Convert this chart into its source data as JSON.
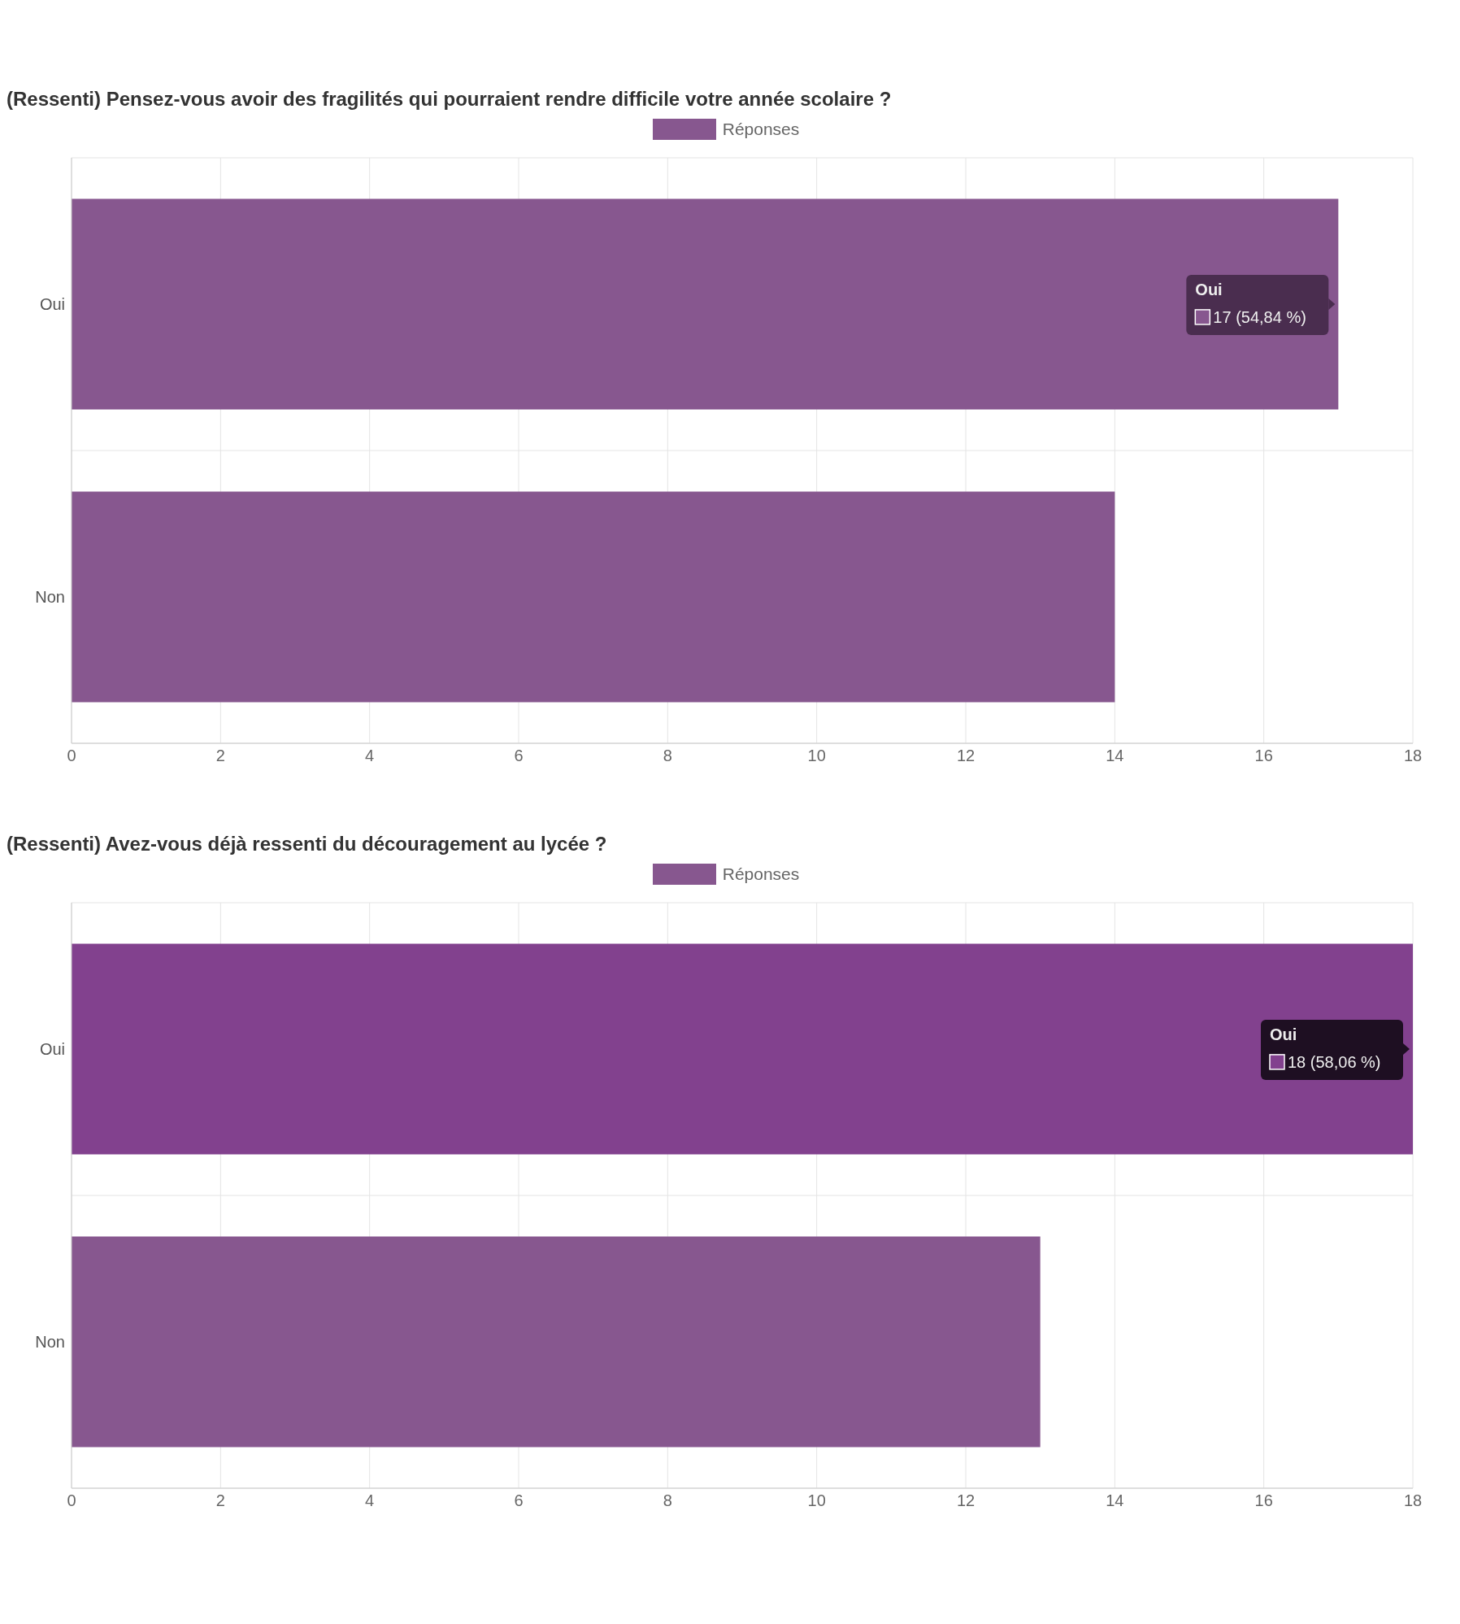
{
  "chart_data": [
    {
      "type": "bar",
      "orientation": "horizontal",
      "title": "(Ressenti) Pensez-vous avoir des fragilités qui pourraient rendre difficile votre année scolaire ?",
      "categories": [
        "Oui",
        "Non"
      ],
      "series": [
        {
          "name": "Réponses",
          "color": "#87578f",
          "colors": [
            "#87578f",
            "#87578f"
          ],
          "values": [
            17,
            14
          ],
          "value_labels": [
            "17 (54,84 %)",
            null
          ]
        }
      ],
      "xlim": [
        0,
        18
      ],
      "xticks": [
        0,
        2,
        4,
        6,
        8,
        10,
        12,
        14,
        16,
        18
      ],
      "grid": true,
      "legend": "top"
    },
    {
      "type": "bar",
      "orientation": "horizontal",
      "title": "(Ressenti) Avez-vous déjà ressenti du découragement au lycée ?",
      "categories": [
        "Oui",
        "Non"
      ],
      "series": [
        {
          "name": "Réponses",
          "color": "#87578f",
          "colors": [
            "#82418e",
            "#87578f"
          ],
          "values": [
            18,
            13
          ],
          "value_labels": [
            "18 (58,06 %)",
            null
          ]
        }
      ],
      "xlim": [
        0,
        18
      ],
      "xticks": [
        0,
        2,
        4,
        6,
        8,
        10,
        12,
        14,
        16,
        18
      ],
      "grid": true,
      "legend": "top"
    }
  ]
}
